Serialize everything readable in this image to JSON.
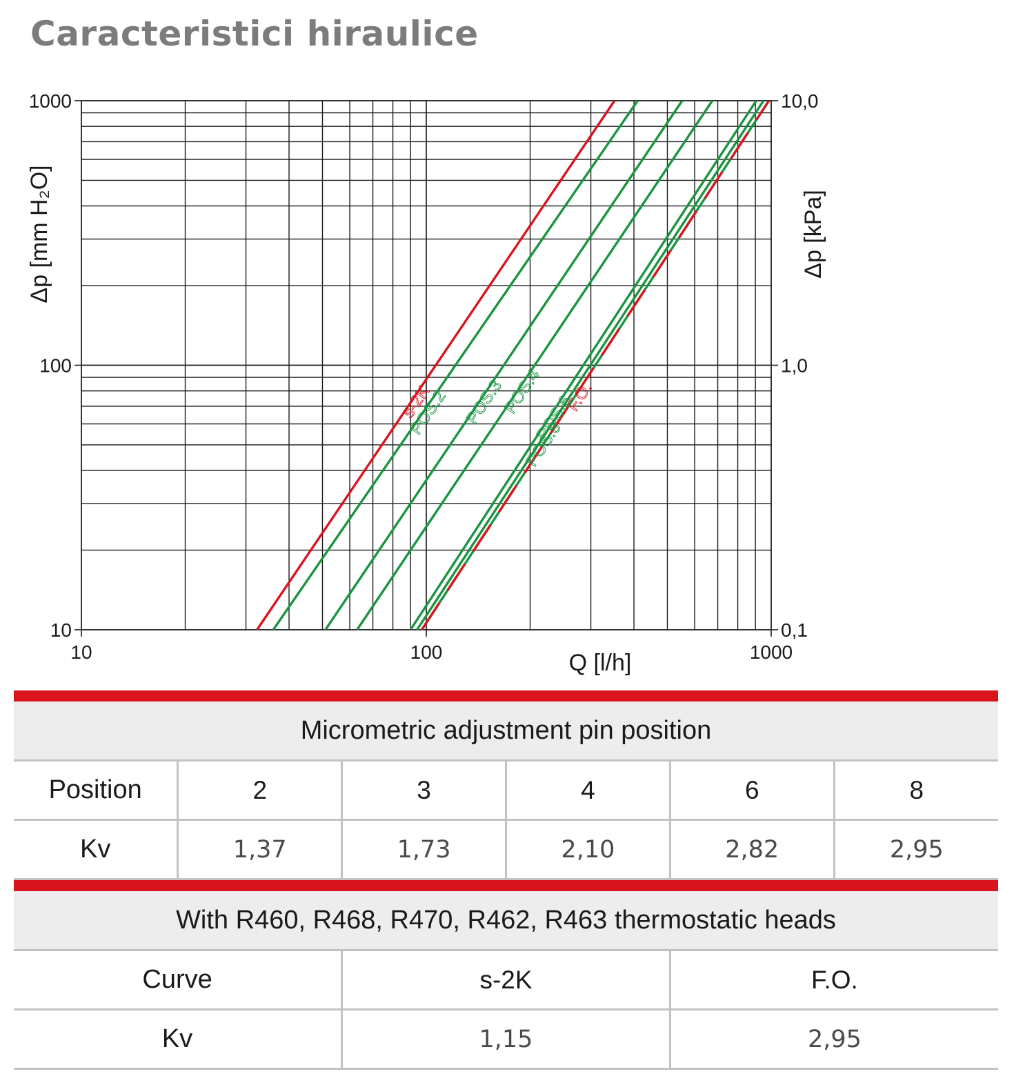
{
  "title": "Caracteristici hiraulice",
  "chart_data": {
    "type": "line",
    "x_scale": "log",
    "y_scale": "log",
    "xlabel": "Q [l/h]",
    "ylabel": "Δp [mm H₂O]",
    "ylabel_right": "Δp [kPa]",
    "xlim": [
      10,
      1000
    ],
    "ylim": [
      10,
      1000
    ],
    "ylim_right": [
      0.1,
      10.0
    ],
    "x_ticks": [
      "10",
      "100",
      "1000"
    ],
    "y_ticks": [
      "10",
      "100",
      "1000"
    ],
    "y_ticks_right": [
      "0,1",
      "1,0",
      "10,0"
    ],
    "grid": true,
    "series": [
      {
        "name": "s-2K",
        "color": "#d9141e",
        "dash": false,
        "x": [
          32.3,
          351.4
        ],
        "y": [
          10,
          1000
        ]
      },
      {
        "name": "POS.2",
        "color": "#1a9440",
        "dash": false,
        "x": [
          36.0,
          410.0
        ],
        "y": [
          10,
          1000
        ]
      },
      {
        "name": "POS.3",
        "color": "#1a9440",
        "dash": false,
        "x": [
          51.0,
          552.0
        ],
        "y": [
          10,
          1000
        ]
      },
      {
        "name": "POS.4",
        "color": "#1a9440",
        "dash": false,
        "x": [
          63.0,
          675.0
        ],
        "y": [
          10,
          1000
        ]
      },
      {
        "name": "POS.6",
        "color": "#1a9440",
        "dash": false,
        "x": [
          90.0,
          905.0
        ],
        "y": [
          10,
          1000
        ]
      },
      {
        "name": "POS.8",
        "color": "#1a9440",
        "dash": false,
        "x": [
          94.0,
          950.0
        ],
        "y": [
          10,
          1000
        ]
      },
      {
        "name": "F.O.",
        "color": "#d9141e",
        "dash": true,
        "x": [
          97.0,
          985.0
        ],
        "y": [
          10,
          1000
        ]
      }
    ]
  },
  "table1": {
    "caption": "Micrometric adjustment pin position",
    "row1_label": "Position",
    "positions": [
      "2",
      "3",
      "4",
      "6",
      "8"
    ],
    "row2_label": "Kv",
    "kv": [
      "1,37",
      "1,73",
      "2,10",
      "2,82",
      "2,95"
    ]
  },
  "table2": {
    "caption": "With R460, R468, R470, R462, R463 thermostatic heads",
    "row1_label": "Curve",
    "curves": [
      "s-2K",
      "F.O."
    ],
    "row2_label": "Kv",
    "kv": [
      "1,15",
      "2,95"
    ]
  }
}
